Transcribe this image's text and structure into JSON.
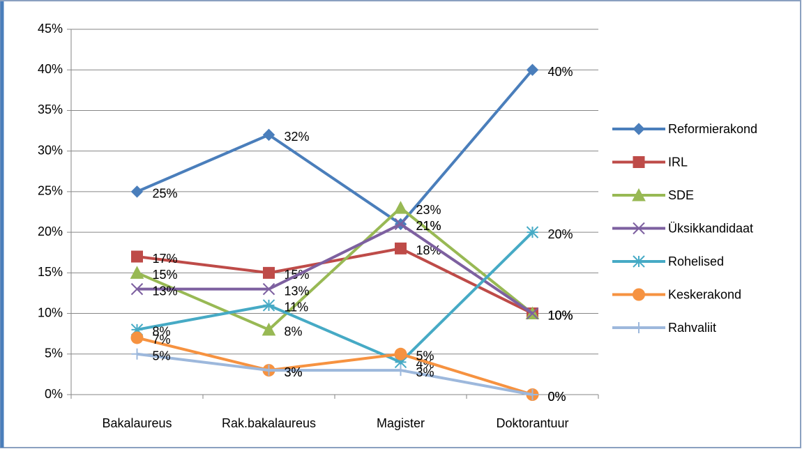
{
  "chart_data": {
    "type": "line",
    "categories": [
      "Bakalaureus",
      "Rak.bakalaureus",
      "Magister",
      "Doktorantuur"
    ],
    "ylim": [
      0,
      45
    ],
    "yticks": [
      {
        "value": 0,
        "label": "0%"
      },
      {
        "value": 5,
        "label": "5%"
      },
      {
        "value": 10,
        "label": "10%"
      },
      {
        "value": 15,
        "label": "15%"
      },
      {
        "value": 20,
        "label": "20%"
      },
      {
        "value": 25,
        "label": "25%"
      },
      {
        "value": 30,
        "label": "30%"
      },
      {
        "value": 35,
        "label": "35%"
      },
      {
        "value": 40,
        "label": "40%"
      },
      {
        "value": 45,
        "label": "45%"
      }
    ],
    "grid": true,
    "legend": "right",
    "series": [
      {
        "name": "Reformierakond",
        "color": "#4a7ebb",
        "marker": "diamond",
        "values": [
          25,
          32,
          21,
          40
        ],
        "value_labels": [
          "25%",
          "32%",
          "21%",
          "40%"
        ]
      },
      {
        "name": "IRL",
        "color": "#be4b48",
        "marker": "square",
        "values": [
          17,
          15,
          18,
          10
        ],
        "value_labels": [
          "17%",
          "15%",
          "18%",
          "10%"
        ]
      },
      {
        "name": "SDE",
        "color": "#98b954",
        "marker": "triangle",
        "values": [
          15,
          8,
          23,
          10
        ],
        "value_labels": [
          "15%",
          "8%",
          "23%",
          "10%"
        ]
      },
      {
        "name": "Üksikkandidaat",
        "color": "#7d60a0",
        "marker": "x",
        "values": [
          13,
          13,
          21,
          10
        ],
        "value_labels": [
          "13%",
          "13%",
          "21%",
          "10%"
        ]
      },
      {
        "name": "Rohelised",
        "color": "#46aac5",
        "marker": "star",
        "values": [
          8,
          11,
          4,
          20
        ],
        "value_labels": [
          "8%",
          "11%",
          "4%",
          "20%"
        ]
      },
      {
        "name": "Keskerakond",
        "color": "#f69240",
        "marker": "circle",
        "values": [
          7,
          3,
          5,
          0
        ],
        "value_labels": [
          "7%",
          "3%",
          "5%",
          "0%"
        ]
      },
      {
        "name": "Rahvaliit",
        "color": "#9db8dc",
        "marker": "plus",
        "values": [
          5,
          3,
          3,
          0
        ],
        "value_labels": [
          "5%",
          "3%",
          "3%",
          "0%"
        ]
      }
    ]
  }
}
